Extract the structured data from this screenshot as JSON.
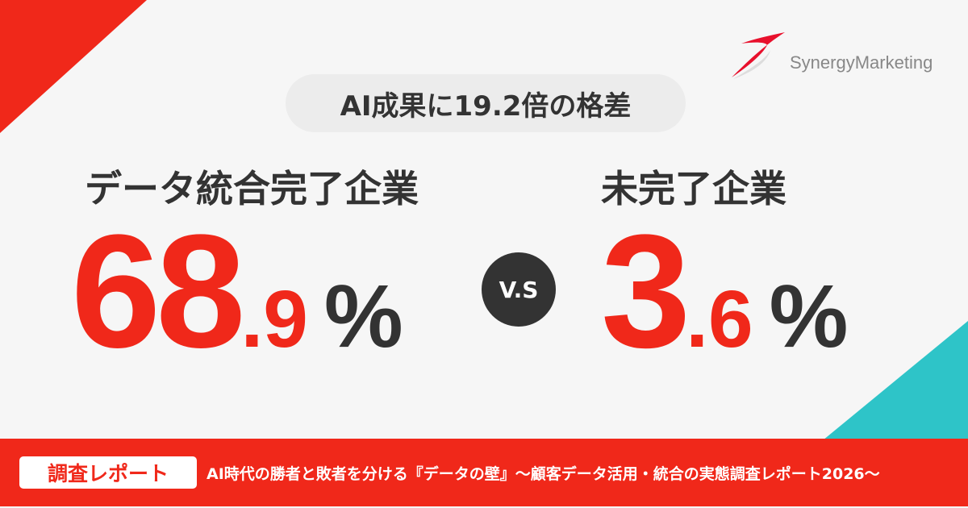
{
  "headline": "AI成果に19.2倍の格差",
  "left": {
    "label": "データ統合完了企業",
    "integer": "68",
    "decimal": ".9",
    "unit": "%"
  },
  "vs": "V.S",
  "right": {
    "label": "未完了企業",
    "integer": "3",
    "decimal": ".6",
    "unit": "%"
  },
  "footer": {
    "badge": "調査レポート",
    "title": "AI時代の勝者と敗者を分ける『データの壁』～顧客データ活用・統合の実態調査レポート2026～"
  },
  "logo": {
    "text": "SynergyMarketing"
  },
  "colors": {
    "accent": "#f0281a",
    "teal": "#2ec4c8",
    "dark": "#333333"
  }
}
